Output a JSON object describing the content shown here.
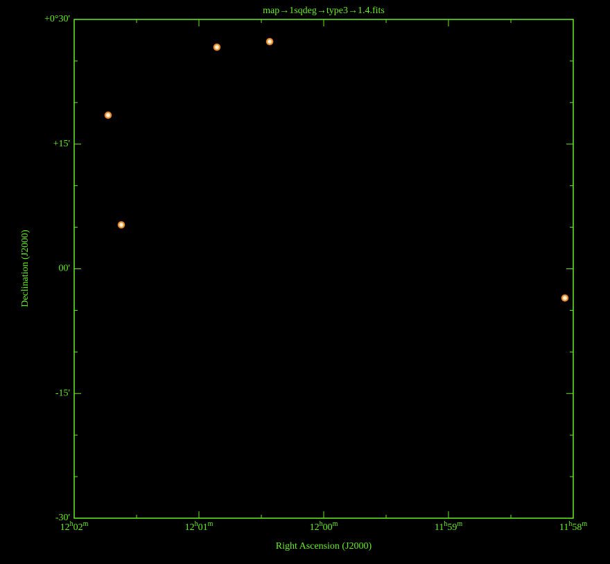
{
  "chart_data": {
    "type": "scatter",
    "title": "map→1sqdeg→type3→1.4.fits",
    "xlabel": "Right Ascension (J2000)",
    "ylabel": "Declination (J2000)",
    "xlim": [
      722,
      718
    ],
    "ylim": [
      -30,
      30
    ],
    "xticks": [
      {
        "value": 722,
        "label": "12h02m"
      },
      {
        "value": 721,
        "label": "12h01m"
      },
      {
        "value": 720,
        "label": "12h00m"
      },
      {
        "value": 719,
        "label": "11h59m"
      },
      {
        "value": 718,
        "label": "11h58m"
      }
    ],
    "yticks": [
      {
        "value": 30,
        "label": "+0°30'"
      },
      {
        "value": 15,
        "label": "+15'"
      },
      {
        "value": 0,
        "label": "00'"
      },
      {
        "value": -15,
        "label": "-15'"
      },
      {
        "value": -30,
        "label": "-30'"
      }
    ],
    "axis_color": "#66ee22",
    "series": [
      {
        "color": "#ff8a20",
        "x": [
          721.728,
          721.622,
          720.856,
          720.433,
          718.067
        ],
        "values": [
          18.48,
          5.29,
          26.66,
          27.33,
          -3.51
        ]
      }
    ]
  }
}
